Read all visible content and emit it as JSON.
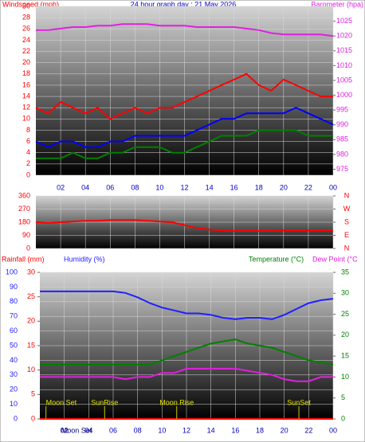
{
  "chart_data": [
    {
      "type": "line",
      "title": "24 hour graph day : 21 May 2026",
      "ylabel": "Windspeed (mph)",
      "y2label": "Barometer (hpa)",
      "x": [
        0,
        1,
        2,
        3,
        4,
        5,
        6,
        7,
        8,
        9,
        10,
        11,
        12,
        13,
        14,
        15,
        16,
        17,
        18,
        19,
        20,
        21,
        22,
        23,
        24
      ],
      "xlim": [
        0,
        24
      ],
      "xticks": [
        {
          "value": 2,
          "label": "02"
        },
        {
          "value": 4,
          "label": "04"
        },
        {
          "value": 6,
          "label": "06"
        },
        {
          "value": 8,
          "label": "08"
        },
        10,
        12,
        14,
        16,
        18,
        20,
        22,
        {
          "value": 24,
          "label": "00"
        }
      ],
      "ylim": [
        0,
        30
      ],
      "yticks": [
        0,
        2,
        4,
        6,
        8,
        10,
        12,
        14,
        16,
        18,
        20,
        22,
        24,
        26,
        28,
        30
      ],
      "y2lim": [
        973,
        1030
      ],
      "y2ticks": [
        975,
        980,
        985,
        990,
        995,
        1000,
        1005,
        1010,
        1015,
        1020,
        1025
      ],
      "grid": true,
      "series": [
        {
          "color": "#ff0000",
          "values": [
            12,
            11,
            13,
            12,
            11,
            12,
            10,
            11,
            12,
            11,
            12,
            12,
            13,
            14,
            15,
            16,
            17,
            18,
            16,
            15,
            17,
            16,
            15,
            14,
            14
          ]
        },
        {
          "color": "#008000",
          "values": [
            3,
            3,
            3,
            4,
            3,
            3,
            4,
            4,
            5,
            5,
            5,
            4,
            4,
            5,
            6,
            7,
            7,
            7,
            8,
            8,
            8,
            8,
            7,
            7,
            7
          ]
        },
        {
          "color": "#0000ff",
          "values": [
            6,
            5,
            6,
            6,
            5,
            5,
            6,
            6,
            7,
            7,
            7,
            7,
            7,
            8,
            9,
            10,
            10,
            11,
            11,
            11,
            11,
            12,
            11,
            10,
            9
          ]
        },
        {
          "color": "#e020e0",
          "axis": "y2",
          "values": [
            1022,
            1022,
            1022.5,
            1023,
            1023,
            1023.5,
            1023.5,
            1024,
            1024,
            1024,
            1023.5,
            1023.5,
            1023.5,
            1023,
            1023,
            1023,
            1023,
            1022.5,
            1022,
            1021,
            1020.5,
            1020.5,
            1020.5,
            1020.5,
            1020
          ]
        }
      ]
    },
    {
      "type": "line",
      "x": [
        0,
        1,
        2,
        3,
        4,
        5,
        6,
        7,
        8,
        9,
        10,
        11,
        12,
        13,
        14,
        15,
        16,
        17,
        18,
        19,
        20,
        21,
        22,
        23,
        24
      ],
      "xlim": [
        0,
        24
      ],
      "xticks": [
        2,
        4,
        6,
        8,
        10,
        12,
        14,
        16,
        18,
        20,
        22,
        24
      ],
      "ylim": [
        0,
        360
      ],
      "yticks": [
        0,
        90,
        180,
        270,
        360
      ],
      "y2lim": [
        0,
        360
      ],
      "y2ticks": [
        {
          "value": 0,
          "label": "N"
        },
        {
          "value": 90,
          "label": "E"
        },
        {
          "value": 180,
          "label": "S"
        },
        {
          "value": 270,
          "label": "W"
        },
        {
          "value": 360,
          "label": "N"
        }
      ],
      "grid": true,
      "series": [
        {
          "color": "#ff0000",
          "values": [
            180,
            175,
            180,
            185,
            190,
            190,
            195,
            195,
            195,
            190,
            185,
            180,
            160,
            140,
            130,
            125,
            120,
            120,
            120,
            120,
            125,
            125,
            125,
            125,
            125
          ]
        }
      ]
    },
    {
      "type": "line",
      "ylabel": "Humidity (%)",
      "y3label": "Rainfall (mm)",
      "y2label": "Temperature (°C)",
      "y4label": "Dew Point (°C",
      "x": [
        0,
        1,
        2,
        3,
        4,
        5,
        6,
        7,
        8,
        9,
        10,
        11,
        12,
        13,
        14,
        15,
        16,
        17,
        18,
        19,
        20,
        21,
        22,
        23,
        24
      ],
      "xlim": [
        0,
        24
      ],
      "xticks": [
        {
          "value": 2,
          "label": "02"
        },
        {
          "value": 4,
          "label": "04"
        },
        {
          "value": 6,
          "label": "06"
        },
        {
          "value": 8,
          "label": "08"
        },
        10,
        12,
        14,
        16,
        18,
        20,
        22,
        {
          "value": 24,
          "label": "00"
        }
      ],
      "ylim": [
        0,
        100
      ],
      "yticks": [
        0,
        10,
        20,
        30,
        40,
        50,
        60,
        70,
        80,
        90,
        100
      ],
      "y3lim": [
        0,
        30
      ],
      "y3ticks": [
        0,
        5,
        10,
        15,
        20,
        25,
        30
      ],
      "y2lim": [
        0,
        35
      ],
      "y2ticks": [
        0,
        5,
        10,
        15,
        20,
        25,
        30,
        35
      ],
      "grid": true,
      "series": [
        {
          "color": "#ff0000",
          "axis": "y3",
          "values": [
            0,
            0,
            0,
            0,
            0,
            0,
            0,
            0,
            0,
            0,
            0,
            0,
            0,
            0,
            0,
            0,
            0,
            0,
            0,
            0,
            0,
            0,
            0,
            0,
            0
          ]
        },
        {
          "color": "#2020ff",
          "values": [
            87,
            87,
            87,
            87,
            87,
            87,
            87,
            86,
            83,
            79,
            76,
            74,
            72,
            72,
            71,
            69,
            68,
            69,
            69,
            68,
            71,
            75,
            79,
            81,
            82
          ]
        },
        {
          "color": "#008000",
          "axis": "y2",
          "values": [
            13,
            13,
            13,
            13,
            13,
            13,
            13,
            13,
            13,
            13,
            14,
            15,
            16,
            17,
            18,
            18.5,
            19,
            18,
            17.5,
            17,
            16,
            15,
            14,
            13.5,
            13
          ]
        },
        {
          "color": "#e020e0",
          "axis": "y2",
          "values": [
            10,
            10,
            10,
            10,
            10,
            10,
            10,
            9.5,
            10,
            10,
            11,
            11,
            12,
            12,
            12,
            12,
            12,
            11.5,
            11,
            10.5,
            9.5,
            9,
            9,
            10,
            10
          ]
        }
      ],
      "annotations": [
        {
          "text": "Moon Set",
          "x": 0.5
        },
        {
          "text": "SunRise",
          "x": 5.3
        },
        {
          "text": "Moon Rise",
          "x": 11.2
        },
        {
          "text": "SunSet",
          "x": 21.2
        },
        {
          "text": "Moon Set",
          "x": 3,
          "position": "bottom"
        }
      ]
    }
  ]
}
